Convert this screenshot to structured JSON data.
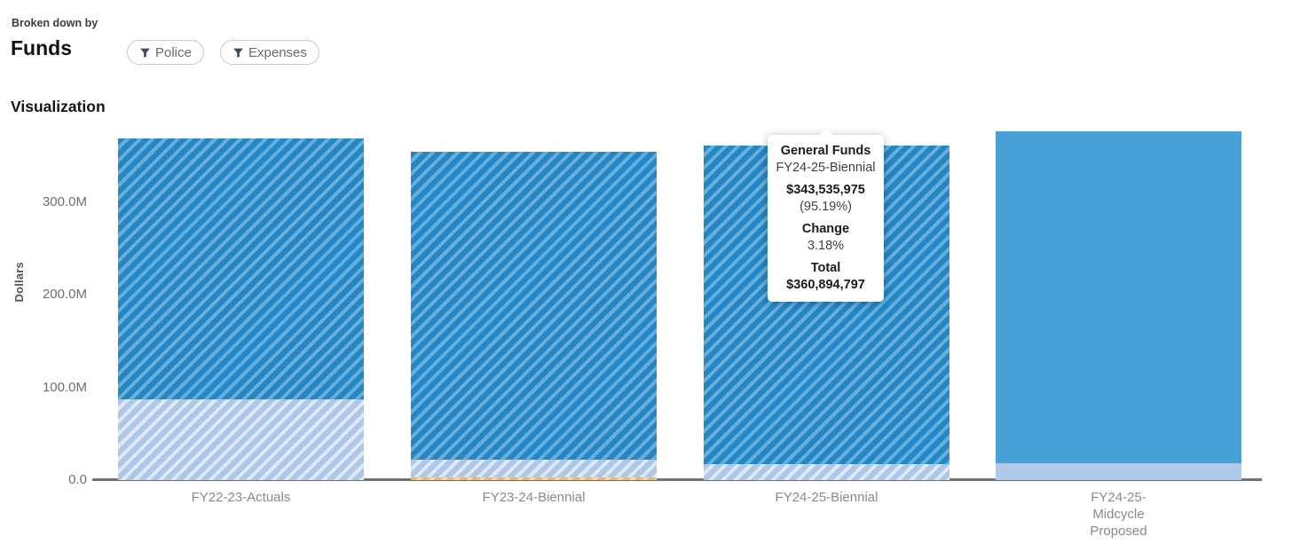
{
  "header": {
    "eyebrow": "Broken down by",
    "title": "Funds",
    "filters": [
      {
        "label": "Police"
      },
      {
        "label": "Expenses"
      }
    ],
    "section_title": "Visualization"
  },
  "tooltip": {
    "fund": "General Funds",
    "category": "FY24-25-Biennial",
    "amount": "$343,535,975",
    "percent": "(95.19%)",
    "change_label": "Change",
    "change_value": "3.18%",
    "total_label": "Total",
    "total_value": "$360,894,797"
  },
  "chart_data": {
    "type": "bar",
    "variant": "stacked",
    "title": "Funds",
    "xlabel": "",
    "ylabel": "Dollars",
    "grid": false,
    "legend": false,
    "ylim_m": [
      0,
      380
    ],
    "yticks": [
      {
        "label": "0.0",
        "value_m": 0
      },
      {
        "label": "100.0M",
        "value_m": 100
      },
      {
        "label": "200.0M",
        "value_m": 200
      },
      {
        "label": "300.0M",
        "value_m": 300
      }
    ],
    "categories": [
      "FY22-23-Actuals",
      "FY23-24-Biennial",
      "FY24-25-Biennial",
      "FY24-25-Midcycle Proposed"
    ],
    "bars": [
      {
        "category": "FY22-23-Actuals",
        "display_lines": [
          "FY22-23-Actuals"
        ],
        "total_m": 368.4,
        "segments": [
          {
            "name": "other-funds",
            "style": "light-hatch",
            "value_m": 87.1
          },
          {
            "name": "general-funds",
            "style": "dark-hatch",
            "value_m": 281.3
          }
        ]
      },
      {
        "category": "FY23-24-Biennial",
        "display_lines": [
          "FY23-24-Biennial"
        ],
        "total_m": 354.1,
        "segments": [
          {
            "name": "minor-fund",
            "style": "tan-hatch",
            "value_m": 2.5
          },
          {
            "name": "other-funds",
            "style": "light-hatch",
            "value_m": 19.1
          },
          {
            "name": "general-funds",
            "style": "dark-hatch",
            "value_m": 332.5
          }
        ]
      },
      {
        "category": "FY24-25-Biennial",
        "display_lines": [
          "FY24-25-Biennial"
        ],
        "total_m": 360.894797,
        "segments": [
          {
            "name": "other-funds",
            "style": "light-hatch",
            "value_m": 17.358822
          },
          {
            "name": "general-funds",
            "style": "dark-hatch",
            "value_m": 343.535975
          }
        ]
      },
      {
        "category": "FY24-25-Midcycle Proposed",
        "display_lines": [
          "FY24-25-",
          "Midcycle",
          "Proposed"
        ],
        "total_m": 376.1,
        "segments": [
          {
            "name": "other-funds",
            "style": "light-solid",
            "value_m": 18.0
          },
          {
            "name": "general-funds",
            "style": "dark-solid",
            "value_m": 358.1
          }
        ]
      }
    ],
    "colors": {
      "dark_hatch_base": "#2387c6",
      "dark_hatch_stripe": "#68aedb",
      "light_hatch_base": "#aec7e8",
      "light_hatch_stripe": "#dfe9f6",
      "tan_hatch_base": "#e2b87e",
      "tan_hatch_stripe": "#f1dcba",
      "dark_solid": "#47a0d6",
      "light_solid": "#b0cbea",
      "axis_line": "#717171"
    }
  }
}
